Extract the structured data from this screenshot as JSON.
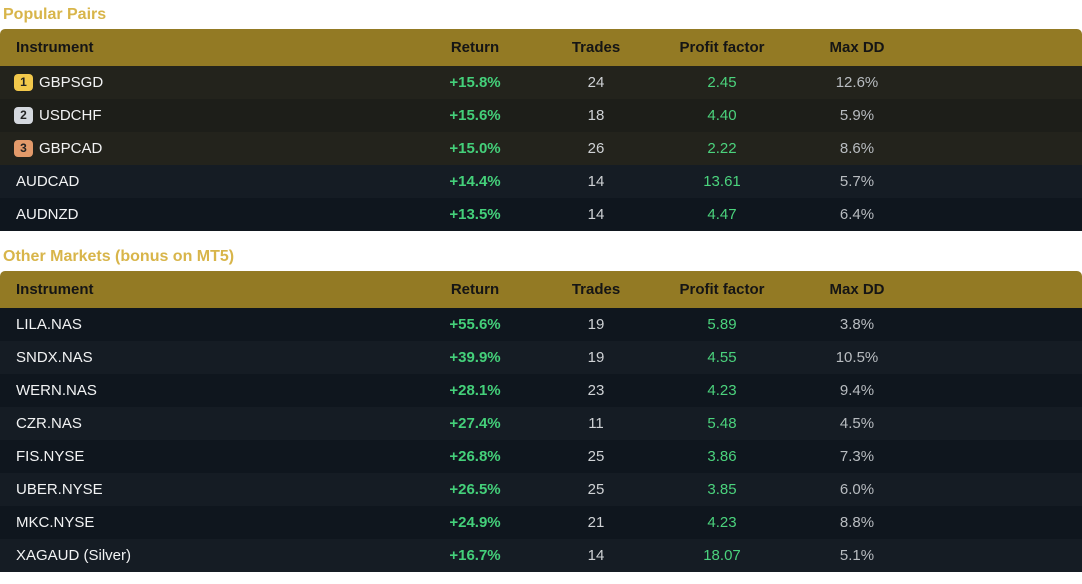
{
  "colors": {
    "heading": "#d8b54a",
    "header_bg": "#937a24",
    "positive": "#44d07a",
    "rank_gold": "#f2c84b",
    "rank_silver": "#d4d8de",
    "rank_bronze": "#e39a6a"
  },
  "columns": {
    "instrument": "Instrument",
    "return": "Return",
    "trades": "Trades",
    "profit_factor": "Profit factor",
    "max_dd": "Max DD"
  },
  "popular": {
    "title": "Popular Pairs",
    "rows": [
      {
        "rank": "1",
        "instrument": "GBPSGD",
        "return": "+15.8%",
        "trades": "24",
        "profit_factor": "2.45",
        "max_dd": "12.6%"
      },
      {
        "rank": "2",
        "instrument": "USDCHF",
        "return": "+15.6%",
        "trades": "18",
        "profit_factor": "4.40",
        "max_dd": "5.9%"
      },
      {
        "rank": "3",
        "instrument": "GBPCAD",
        "return": "+15.0%",
        "trades": "26",
        "profit_factor": "2.22",
        "max_dd": "8.6%"
      },
      {
        "instrument": "AUDCAD",
        "return": "+14.4%",
        "trades": "14",
        "profit_factor": "13.61",
        "max_dd": "5.7%"
      },
      {
        "instrument": "AUDNZD",
        "return": "+13.5%",
        "trades": "14",
        "profit_factor": "4.47",
        "max_dd": "6.4%"
      }
    ]
  },
  "other": {
    "title": "Other Markets (bonus on MT5)",
    "rows": [
      {
        "instrument": "LILA.NAS",
        "return": "+55.6%",
        "trades": "19",
        "profit_factor": "5.89",
        "max_dd": "3.8%"
      },
      {
        "instrument": "SNDX.NAS",
        "return": "+39.9%",
        "trades": "19",
        "profit_factor": "4.55",
        "max_dd": "10.5%"
      },
      {
        "instrument": "WERN.NAS",
        "return": "+28.1%",
        "trades": "23",
        "profit_factor": "4.23",
        "max_dd": "9.4%"
      },
      {
        "instrument": "CZR.NAS",
        "return": "+27.4%",
        "trades": "11",
        "profit_factor": "5.48",
        "max_dd": "4.5%"
      },
      {
        "instrument": "FIS.NYSE",
        "return": "+26.8%",
        "trades": "25",
        "profit_factor": "3.86",
        "max_dd": "7.3%"
      },
      {
        "instrument": "UBER.NYSE",
        "return": "+26.5%",
        "trades": "25",
        "profit_factor": "3.85",
        "max_dd": "6.0%"
      },
      {
        "instrument": "MKC.NYSE",
        "return": "+24.9%",
        "trades": "21",
        "profit_factor": "4.23",
        "max_dd": "8.8%"
      },
      {
        "instrument": "XAGAUD (Silver)",
        "return": "+16.7%",
        "trades": "14",
        "profit_factor": "18.07",
        "max_dd": "5.1%"
      }
    ]
  }
}
